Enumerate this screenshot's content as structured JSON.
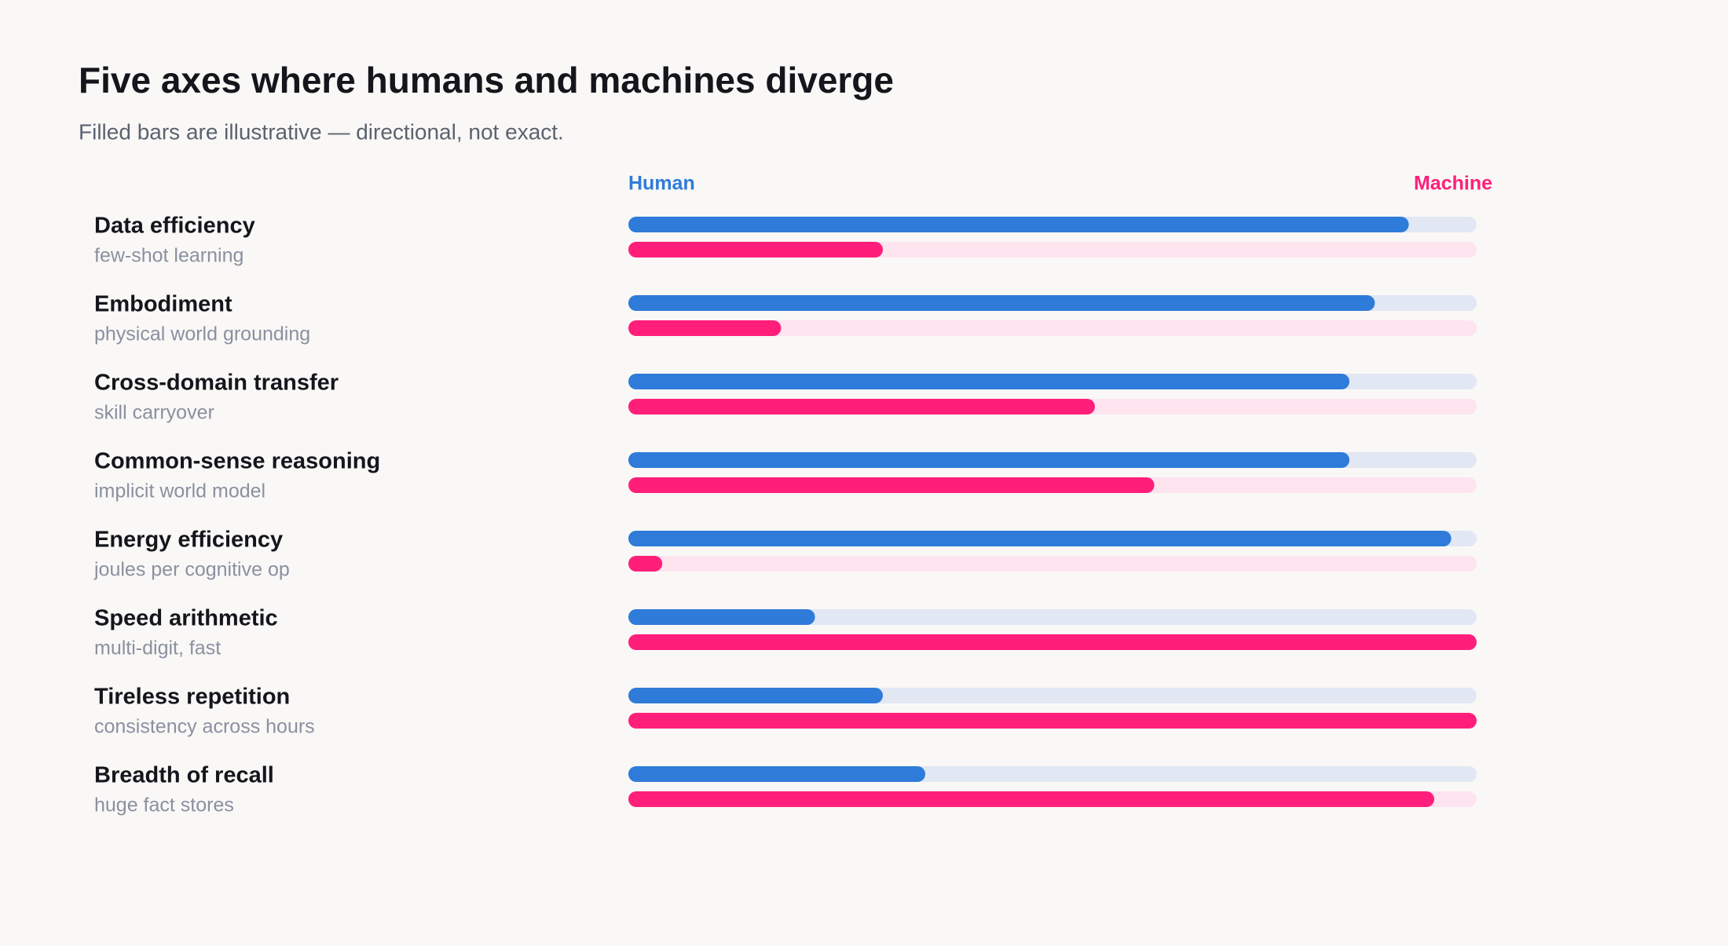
{
  "chart_data": {
    "type": "paired-bar",
    "title": "Five axes where humans and machines diverge",
    "subtitle": "Filled bars are illustrative — directional, not exact.",
    "categories": [
      "Data efficiency",
      "Embodiment",
      "Cross-domain transfer",
      "Common-sense reasoning",
      "Energy efficiency",
      "Speed arithmetic",
      "Tireless repetition",
      "Breadth of recall"
    ],
    "category_notes": [
      "few-shot learning",
      "physical world grounding",
      "skill carryover",
      "implicit world model",
      "joules per cognitive op",
      "multi-digit, fast",
      "consistency across hours",
      "huge fact stores"
    ],
    "xlim": [
      0,
      100
    ],
    "series": [
      {
        "name": "Human",
        "color": "#2f7bd9",
        "track_color": "#e1e7f3",
        "values": [
          92,
          88,
          85,
          85,
          97,
          22,
          30,
          35
        ]
      },
      {
        "name": "Machine",
        "color": "#ff1f7a",
        "track_color": "#fde4ef",
        "values": [
          30,
          18,
          55,
          62,
          4,
          100,
          100,
          95
        ]
      }
    ]
  }
}
